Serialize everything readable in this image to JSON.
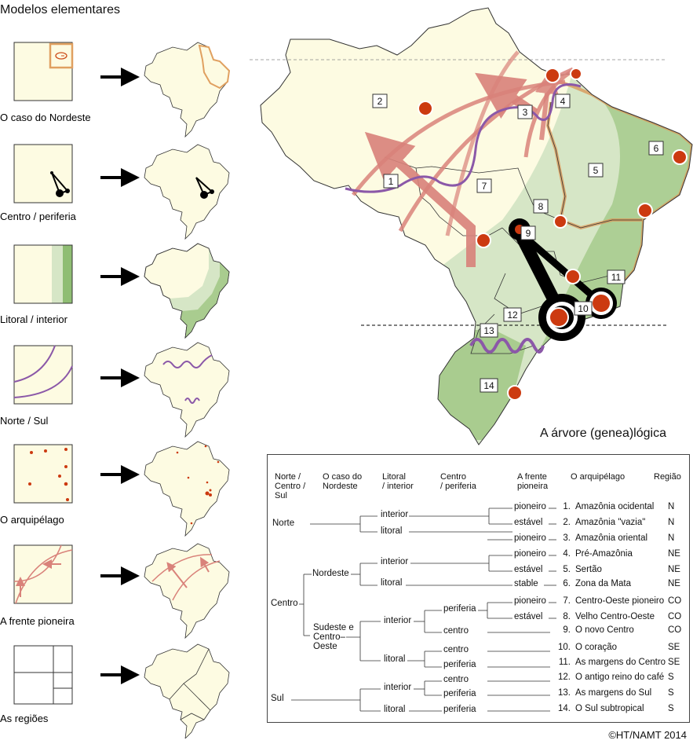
{
  "title": "Modelos elementares",
  "tree_title": "A árvore (genea)lógica",
  "copyright": "©HT/NAMT 2014",
  "models": [
    {
      "label": "O caso do Nordeste",
      "icon": "nordeste-square-icon"
    },
    {
      "label": "Centro / periferia",
      "icon": "centro-periferia-icon"
    },
    {
      "label": "Litoral / interior",
      "icon": "litoral-interior-icon"
    },
    {
      "label": "Norte / Sul",
      "icon": "norte-sul-icon"
    },
    {
      "label": "O arquipélago",
      "icon": "arquipelago-icon"
    },
    {
      "label": "A frente pioneira",
      "icon": "frente-pioneira-icon"
    },
    {
      "label": "As regiões",
      "icon": "regioes-icon"
    }
  ],
  "map_numbers": [
    "1",
    "2",
    "3",
    "4",
    "5",
    "6",
    "7",
    "8",
    "9",
    "10",
    "11",
    "12",
    "13",
    "14"
  ],
  "tree": {
    "headers": {
      "col1": [
        "Norte /",
        "Centro /",
        "Sul"
      ],
      "col2": [
        "O caso do",
        "Nordeste"
      ],
      "col3": [
        "Litoral",
        "/ interior"
      ],
      "col4": [
        "Centro",
        "/ periferia"
      ],
      "col5": [
        "A frente",
        "pioneira"
      ],
      "col6": [
        "O arquipélago"
      ],
      "col7": [
        "Região"
      ]
    },
    "level1": {
      "norte": "Norte",
      "centro": "Centro",
      "sul": "Sul"
    },
    "level2": {
      "nordeste": "Nordeste",
      "sudeste": [
        "Sudeste e",
        "Centro–",
        "Oeste"
      ]
    },
    "level3": {
      "n_interior": "interior",
      "n_litoral": "litoral",
      "ne_interior": "interior",
      "ne_litoral": "litoral",
      "se_interior": "interior",
      "se_litoral": "litoral",
      "s_interior": "interior",
      "s_litoral": "litoral"
    },
    "level4": {
      "se_i_periferia": "periferia",
      "se_i_centro": "centro",
      "se_l_centro": "centro",
      "se_l_periferia": "periferia",
      "s_i_centro": "centro",
      "s_i_periferia": "periferia",
      "s_l_periferia": "periferia"
    },
    "rows": [
      {
        "pioneer": "pioneiro",
        "num": "1.",
        "name": "Amazônia ocidental",
        "region": "N"
      },
      {
        "pioneer": "estável",
        "num": "2.",
        "name": "Amazônia \"vazia\"",
        "region": "N"
      },
      {
        "pioneer": "pioneiro",
        "num": "3.",
        "name": "Amazônia oriental",
        "region": "N"
      },
      {
        "pioneer": "pioneiro",
        "num": "4.",
        "name": "Pré-Amazônia",
        "region": "NE"
      },
      {
        "pioneer": "estável",
        "num": "5.",
        "name": "Sertão",
        "region": "NE"
      },
      {
        "pioneer": "stable",
        "num": "6.",
        "name": "Zona da Mata",
        "region": "NE"
      },
      {
        "pioneer": "pioneiro",
        "num": "7.",
        "name": "Centro-Oeste pioneiro",
        "region": "CO"
      },
      {
        "pioneer": "estável",
        "num": "8.",
        "name": "Velho Centro-Oeste",
        "region": "CO"
      },
      {
        "pioneer": "",
        "num": "9.",
        "name": "O novo Centro",
        "region": "CO"
      },
      {
        "pioneer": "",
        "num": "10.",
        "name": "O coração",
        "region": "SE"
      },
      {
        "pioneer": "",
        "num": "11.",
        "name": "As margens do Centro",
        "region": "SE"
      },
      {
        "pioneer": "",
        "num": "12.",
        "name": "O antigo reino do café",
        "region": "S"
      },
      {
        "pioneer": "",
        "num": "13.",
        "name": "As margens do Sul",
        "region": "S"
      },
      {
        "pioneer": "",
        "num": "14.",
        "name": "O Sul subtropical",
        "region": "S"
      }
    ]
  },
  "colors": {
    "cream": "#fdfbe2",
    "light_green": "#d6e6c6",
    "mid_green": "#a9cc8f",
    "purple": "#8b58a8",
    "pink": "#d9827a",
    "red_dot": "#cc3a10",
    "orange_border": "#d9985a"
  }
}
